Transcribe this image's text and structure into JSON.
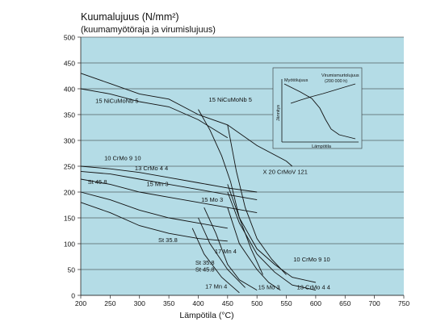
{
  "chart_data": {
    "type": "line",
    "title": "Kuumalujuus (N/mm²)",
    "subtitle": "(kuumamyötöraja ja virumislujuus)",
    "xlabel": "Lämpötila (°C)",
    "ylabel": "",
    "xlim": [
      200,
      750
    ],
    "ylim": [
      0,
      500
    ],
    "xticks": [
      200,
      250,
      300,
      350,
      400,
      450,
      500,
      550,
      600,
      650,
      700,
      750
    ],
    "yticks": [
      0,
      50,
      100,
      150,
      200,
      250,
      300,
      350,
      400,
      450,
      500
    ],
    "grid": "horizontal",
    "background": "#b4dce6",
    "series": [
      {
        "name": "15 NiCuMoNb 5",
        "x": [
          200,
          250,
          300,
          350,
          400,
          450
        ],
        "y": [
          400,
          390,
          375,
          365,
          340,
          305
        ]
      },
      {
        "name": "15 NiCuMoNb 5",
        "x": [
          200,
          250,
          300,
          350,
          400,
          450,
          500,
          550,
          560
        ],
        "y": [
          430,
          410,
          390,
          380,
          350,
          330,
          290,
          260,
          250
        ]
      },
      {
        "name": "15 NiCuMoNb 5",
        "x": [
          400,
          420,
          440,
          455,
          470,
          490,
          510
        ],
        "y": [
          360,
          320,
          270,
          220,
          150,
          90,
          40
        ]
      },
      {
        "name": "X 20 CrMoV 121",
        "x": [
          450,
          465,
          480,
          500,
          525,
          550
        ],
        "y": [
          330,
          240,
          170,
          110,
          70,
          40
        ]
      },
      {
        "name": "10 CrMo 9 10",
        "x": [
          200,
          250,
          300,
          350,
          400,
          450,
          500
        ],
        "y": [
          250,
          245,
          238,
          228,
          218,
          208,
          200
        ]
      },
      {
        "name": "10 CrMo 9 10",
        "x": [
          450,
          470,
          500,
          530,
          560,
          600
        ],
        "y": [
          215,
          150,
          90,
          60,
          35,
          25
        ]
      },
      {
        "name": "13 CrMo 4 4",
        "x": [
          200,
          250,
          300,
          350,
          400,
          450,
          500
        ],
        "y": [
          240,
          235,
          225,
          215,
          205,
          195,
          185
        ]
      },
      {
        "name": "13 CrMo 4 4",
        "x": [
          450,
          470,
          500,
          530,
          560,
          600
        ],
        "y": [
          200,
          140,
          80,
          45,
          20,
          10
        ]
      },
      {
        "name": "15 Mo 3",
        "x": [
          200,
          250,
          300,
          350,
          400,
          450,
          500
        ],
        "y": [
          225,
          215,
          200,
          190,
          180,
          170,
          160
        ]
      },
      {
        "name": "15 Mo 3",
        "x": [
          450,
          470,
          500,
          520,
          540
        ],
        "y": [
          170,
          100,
          50,
          25,
          10
        ]
      },
      {
        "name": "St 45.8",
        "x": [
          200,
          250,
          300,
          350,
          400,
          450
        ],
        "y": [
          200,
          185,
          165,
          150,
          140,
          130
        ]
      },
      {
        "name": "St 35.8",
        "x": [
          200,
          250,
          300,
          350,
          400,
          450
        ],
        "y": [
          180,
          160,
          135,
          120,
          110,
          105
        ]
      },
      {
        "name": "17 Mn 4",
        "x": [
          410,
          430,
          450,
          470,
          500
        ],
        "y": [
          170,
          120,
          60,
          30,
          10
        ]
      },
      {
        "name": "St 45.8",
        "x": [
          400,
          420,
          450,
          480
        ],
        "y": [
          150,
          100,
          50,
          15
        ]
      },
      {
        "name": "St 35.8",
        "x": [
          390,
          410,
          440,
          470
        ],
        "y": [
          130,
          80,
          35,
          5
        ]
      }
    ],
    "annotations": [
      {
        "text": "15 NiCuMoNb 5",
        "x": 225,
        "y": 373
      },
      {
        "text": "15 NiCuMoNb 5",
        "x": 418,
        "y": 375
      },
      {
        "text": "X 20 CrMoV 121",
        "x": 510,
        "y": 235
      },
      {
        "text": "10 CrMo 9 10",
        "x": 240,
        "y": 262
      },
      {
        "text": "13 CrMo 4 4",
        "x": 292,
        "y": 242
      },
      {
        "text": "St 45.8",
        "x": 212,
        "y": 216
      },
      {
        "text": "15 Mn 3",
        "x": 312,
        "y": 212
      },
      {
        "text": "15 Mo 3",
        "x": 405,
        "y": 181
      },
      {
        "text": "St 35.8",
        "x": 332,
        "y": 103
      },
      {
        "text": "17 Mn 4",
        "x": 428,
        "y": 81
      },
      {
        "text": "St 35.8",
        "x": 395,
        "y": 59
      },
      {
        "text": "St 45.8",
        "x": 395,
        "y": 46
      },
      {
        "text": "10 CrMo 9 10",
        "x": 562,
        "y": 66
      },
      {
        "text": "17 Mn 4",
        "x": 412,
        "y": 13
      },
      {
        "text": "15 Mo 3",
        "x": 502,
        "y": 12
      },
      {
        "text": "13 CrMo 4 4",
        "x": 568,
        "y": 12
      }
    ],
    "inset": {
      "ylabel": "Jännitys",
      "xlabel": "Lämpötila",
      "label_1": "Myötölujuus",
      "label_2": "Virumismurtolujuus",
      "label_3": "(200 000 h)"
    }
  }
}
